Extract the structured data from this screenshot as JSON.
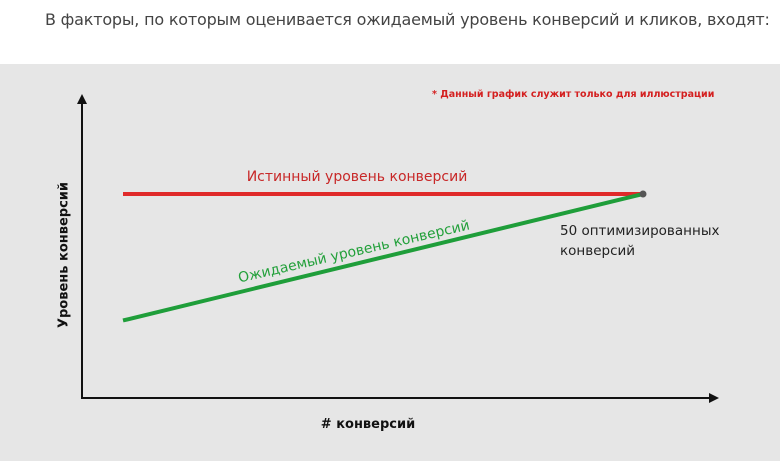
{
  "intro_text": "В факторы, по которым оценивается ожидаемый уровень конверсий и кликов, входят:",
  "chart_data": {
    "type": "line",
    "disclaimer": "* Данный график служит только для иллюстрации",
    "xlabel": "# конверсий",
    "ylabel": "Уровень конверсий",
    "grid": false,
    "series": [
      {
        "name": "Истинный уровень конверсий",
        "color": "#e02a2a",
        "points": [
          [
            0,
            1.0
          ],
          [
            50,
            1.0
          ]
        ]
      },
      {
        "name": "Ожидаемый уровень конверсий",
        "color": "#1f9e3a",
        "points": [
          [
            0,
            0.38
          ],
          [
            50,
            1.0
          ]
        ]
      }
    ],
    "endpoint": {
      "x": 50,
      "y": 1.0,
      "label_lines": [
        "50 оптимизированных",
        "конверсий"
      ]
    },
    "colors": {
      "panel_bg": "#e6e6e6",
      "axis": "#111111",
      "endpoint_dot": "#555555"
    }
  }
}
